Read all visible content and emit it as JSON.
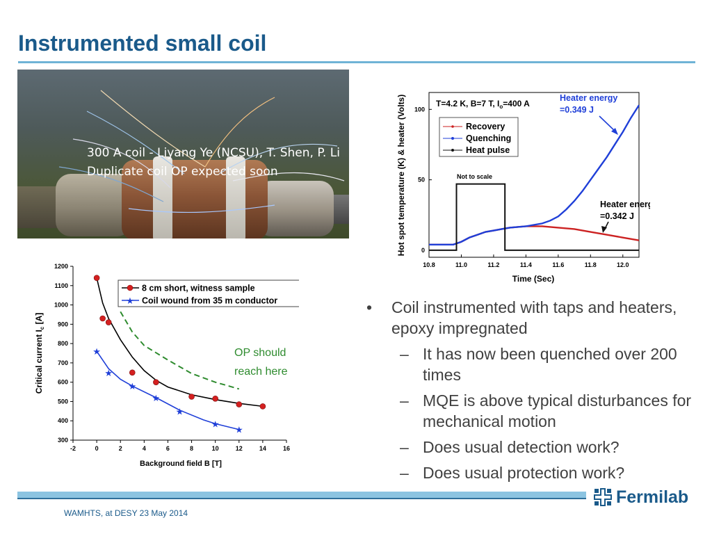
{
  "slide": {
    "title": "Instrumented small coil",
    "photo_caption_line1": "300 A coil - Liyang Ye (NCSU), T. Shen, P. Li",
    "photo_caption_line2": "Duplicate coil OP expected soon",
    "footer": "WAMHTS, at DESY 23 May 2014",
    "logo_text": "Fermilab",
    "logo_icon": "fermilab-logo-icon",
    "accent_color": "#1a5a8a",
    "rule_color": "#6fb3d6"
  },
  "bullets": {
    "main": "Coil instrumented with taps and heaters, epoxy impregnated",
    "subs": [
      "It has now been quenched over 200 times",
      "MQE is above typical disturbances for mechanical motion",
      "Does usual detection work?",
      "Does usual protection work?"
    ]
  },
  "chart_data": [
    {
      "type": "line",
      "xlabel": "Time (Sec)",
      "ylabel": "Hot spot temperature (K) & heater (Volts)",
      "xlim": [
        10.8,
        12.1
      ],
      "ylim": [
        -5,
        112
      ],
      "xticks": [
        "10.8",
        "11.0",
        "11.2",
        "11.4",
        "11.6",
        "11.8",
        "12.0"
      ],
      "yticks": [
        "0",
        "50",
        "100"
      ],
      "condition_text": "T=4.2 K, B=7 T, I",
      "condition_sub": "o",
      "condition_rest": "=400 A",
      "legend_position": "top-left",
      "annotations": {
        "not_to_scale": "Not to scale",
        "heater_quench_l1": "Heater energy",
        "heater_quench_l2": "=0.349 J",
        "heater_recovery_l1": "Heater energy",
        "heater_recovery_l2": "=0.342 J"
      },
      "series": [
        {
          "name": "Recovery",
          "color": "#cc2222",
          "x": [
            10.8,
            10.95,
            11.0,
            11.05,
            11.1,
            11.15,
            11.2,
            11.25,
            11.3,
            11.4,
            11.5,
            11.6,
            11.7,
            11.8,
            11.9,
            12.0,
            12.1
          ],
          "y": [
            4,
            4,
            6,
            9,
            11,
            13,
            14,
            15,
            16,
            17,
            17,
            16,
            15,
            13,
            11,
            9,
            7
          ]
        },
        {
          "name": "Quenching",
          "color": "#1f3fd8",
          "x": [
            10.8,
            10.95,
            11.0,
            11.05,
            11.1,
            11.15,
            11.2,
            11.25,
            11.3,
            11.4,
            11.5,
            11.55,
            11.6,
            11.65,
            11.7,
            11.75,
            11.8,
            11.85,
            11.9,
            11.95,
            12.0,
            12.05,
            12.1
          ],
          "y": [
            4,
            4,
            6,
            9,
            11,
            13,
            14,
            15,
            16,
            17,
            19,
            21,
            24,
            29,
            35,
            42,
            50,
            58,
            66,
            75,
            84,
            94,
            103
          ]
        },
        {
          "name": "Heat pulse",
          "color": "#111111",
          "x": [
            10.8,
            10.97,
            10.97,
            11.27,
            11.27,
            12.1
          ],
          "y": [
            0,
            0,
            47,
            47,
            0,
            0
          ]
        }
      ]
    },
    {
      "type": "line",
      "xlabel": "Background field B [T]",
      "ylabel": "Critical current I",
      "ylabel_sub": "c",
      "ylabel_unit": " [A]",
      "xlim": [
        -2,
        16
      ],
      "ylim": [
        300,
        1200
      ],
      "xticks": [
        "-2",
        "0",
        "2",
        "4",
        "6",
        "8",
        "10",
        "12",
        "14",
        "16"
      ],
      "yticks": [
        "300",
        "400",
        "500",
        "600",
        "700",
        "800",
        "900",
        "1000",
        "1100",
        "1200"
      ],
      "legend_position": "top",
      "annotation_l1": "OP should",
      "annotation_l2": "reach here",
      "annotation_color": "#2e8b2e",
      "series": [
        {
          "name": "8 cm short, witness sample",
          "color": "#d42020",
          "marker": "circle",
          "x": [
            0,
            0.5,
            1,
            3,
            5,
            8,
            10,
            12,
            14
          ],
          "y": [
            1140,
            930,
            910,
            650,
            600,
            525,
            515,
            485,
            475
          ]
        },
        {
          "name": "Coil wound from 35 m conductor",
          "color": "#1f3fd8",
          "marker": "star",
          "x": [
            0,
            1,
            3,
            5,
            7,
            10,
            12
          ],
          "y": [
            760,
            650,
            580,
            520,
            450,
            385,
            355
          ]
        },
        {
          "name": "",
          "color": "#2e8b2e",
          "style": "dashed",
          "x": [
            2,
            3,
            4,
            6,
            8,
            10,
            12
          ],
          "y": [
            965,
            860,
            790,
            715,
            645,
            600,
            565
          ]
        }
      ]
    }
  ]
}
